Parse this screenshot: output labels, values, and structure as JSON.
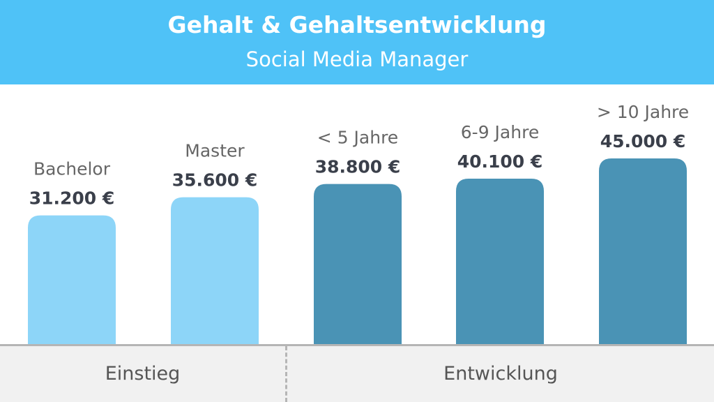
{
  "header": {
    "title": "Gehalt & Gehaltsentwicklung",
    "subtitle": "Social Media Manager"
  },
  "footer": {
    "groups": [
      {
        "label": "Einstieg"
      },
      {
        "label": "Entwicklung"
      }
    ]
  },
  "colors": {
    "header_bg": "#4fc2f7",
    "light_bar": "#8dd5f8",
    "dark_bar": "#4a93b5",
    "value_text": "#3a3f4a",
    "category_text": "#666666"
  },
  "chart_data": {
    "type": "bar",
    "title": "Gehalt & Gehaltsentwicklung",
    "subtitle": "Social Media Manager",
    "categories": [
      "Bachelor",
      "Master",
      "< 5 Jahre",
      "6-9 Jahre",
      "> 10 Jahre"
    ],
    "values": [
      31200,
      35600,
      38800,
      40100,
      45000
    ],
    "value_labels": [
      "31.200 €",
      "35.600 €",
      "38.800 €",
      "40.100 €",
      "45.000 €"
    ],
    "groups": [
      {
        "name": "Einstieg",
        "categories": [
          "Bachelor",
          "Master"
        ],
        "color": "#8dd5f8"
      },
      {
        "name": "Entwicklung",
        "categories": [
          "< 5 Jahre",
          "6-9 Jahre",
          "> 10 Jahre"
        ],
        "color": "#4a93b5"
      }
    ],
    "ylim": [
      0,
      45000
    ],
    "grid": false,
    "legend": "none"
  }
}
